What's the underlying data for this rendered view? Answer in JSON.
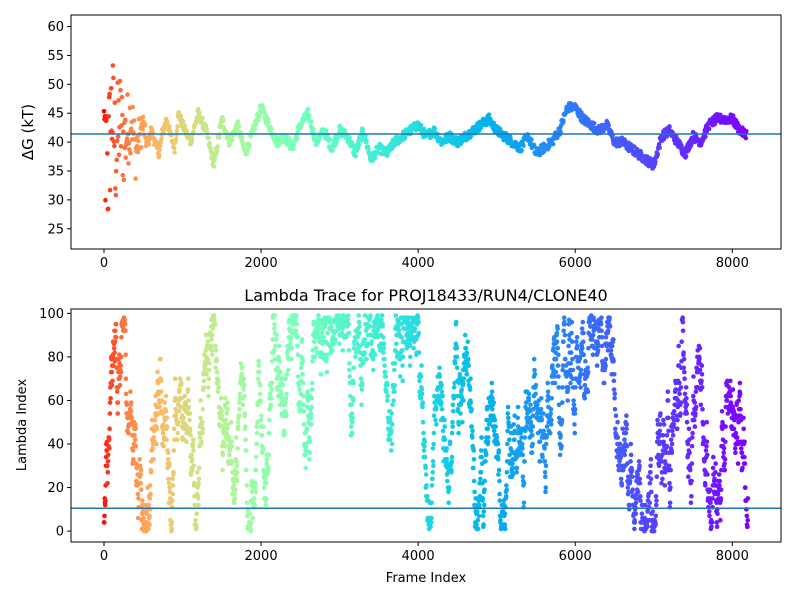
{
  "chart_data": [
    {
      "type": "scatter",
      "title": "",
      "xlabel": "",
      "ylabel": "ΔG (kT)",
      "xlim": [
        -420,
        8620
      ],
      "ylim": [
        21.5,
        62
      ],
      "xticks": [
        0,
        2000,
        4000,
        6000,
        8000
      ],
      "yticks": [
        25,
        30,
        35,
        40,
        45,
        50,
        55,
        60
      ],
      "hline": 41.4,
      "hline_color": "#1f77b4",
      "colormap": "rainbow",
      "color_note": "points colored by frame index, red at start to violet at end",
      "series": [
        {
          "x": [
            0,
            50,
            100,
            150,
            200,
            250,
            300,
            350,
            400,
            450,
            500,
            550,
            600,
            650,
            700,
            750,
            800,
            850,
            900,
            950,
            1000,
            1100,
            1200,
            1300,
            1400,
            1500,
            1600,
            1700,
            1800,
            1900,
            2000,
            2100,
            2200,
            2300,
            2400,
            2500,
            2600,
            2700,
            2800,
            2900,
            3000,
            3100,
            3200,
            3300,
            3400,
            3500,
            3600,
            3700,
            3800,
            3900,
            4000,
            4100,
            4200,
            4300,
            4400,
            4500,
            4600,
            4700,
            4800,
            4900,
            5000,
            5100,
            5200,
            5300,
            5400,
            5500,
            5600,
            5700,
            5800,
            5900,
            6000,
            6100,
            6200,
            6300,
            6400,
            6500,
            6600,
            6700,
            6800,
            6900,
            7000,
            7100,
            7200,
            7300,
            7400,
            7500,
            7600,
            7700,
            7800,
            7900,
            8000,
            8100,
            8150
          ],
          "y": [
            41,
            35,
            46,
            38,
            44,
            40,
            42,
            45,
            38,
            41,
            43,
            39,
            42,
            40,
            38,
            42,
            44,
            41,
            39,
            45,
            43,
            40,
            45,
            42,
            36,
            44,
            40,
            43,
            38,
            42,
            46,
            43,
            40,
            41,
            39,
            43,
            45,
            40,
            42,
            39,
            42,
            41,
            38,
            42,
            37,
            39,
            38,
            40,
            41,
            42,
            43,
            41,
            42,
            40,
            41,
            40,
            41,
            42,
            43,
            44,
            42,
            41,
            40,
            39,
            41,
            38,
            39,
            40,
            42,
            46,
            46,
            44,
            43,
            42,
            43,
            40,
            40,
            39,
            38,
            37,
            36,
            41,
            42,
            40,
            38,
            41,
            40,
            43,
            44,
            44,
            44,
            42,
            41.5
          ]
        }
      ]
    },
    {
      "type": "scatter",
      "title": "Lambda Trace for PROJ18433/RUN4/CLONE40",
      "xlabel": "Frame Index",
      "ylabel": "Lambda Index",
      "xlim": [
        -420,
        8620
      ],
      "ylim": [
        -5,
        102
      ],
      "xticks": [
        0,
        2000,
        4000,
        6000,
        8000
      ],
      "yticks": [
        0,
        20,
        40,
        60,
        80,
        100
      ],
      "hline": 10.5,
      "hline_color": "#1f77b4",
      "colormap": "rainbow",
      "color_note": "points colored by frame index, red at start to violet at end",
      "frame_range": [
        0,
        8200
      ],
      "lambda_range": [
        0,
        99
      ]
    }
  ]
}
